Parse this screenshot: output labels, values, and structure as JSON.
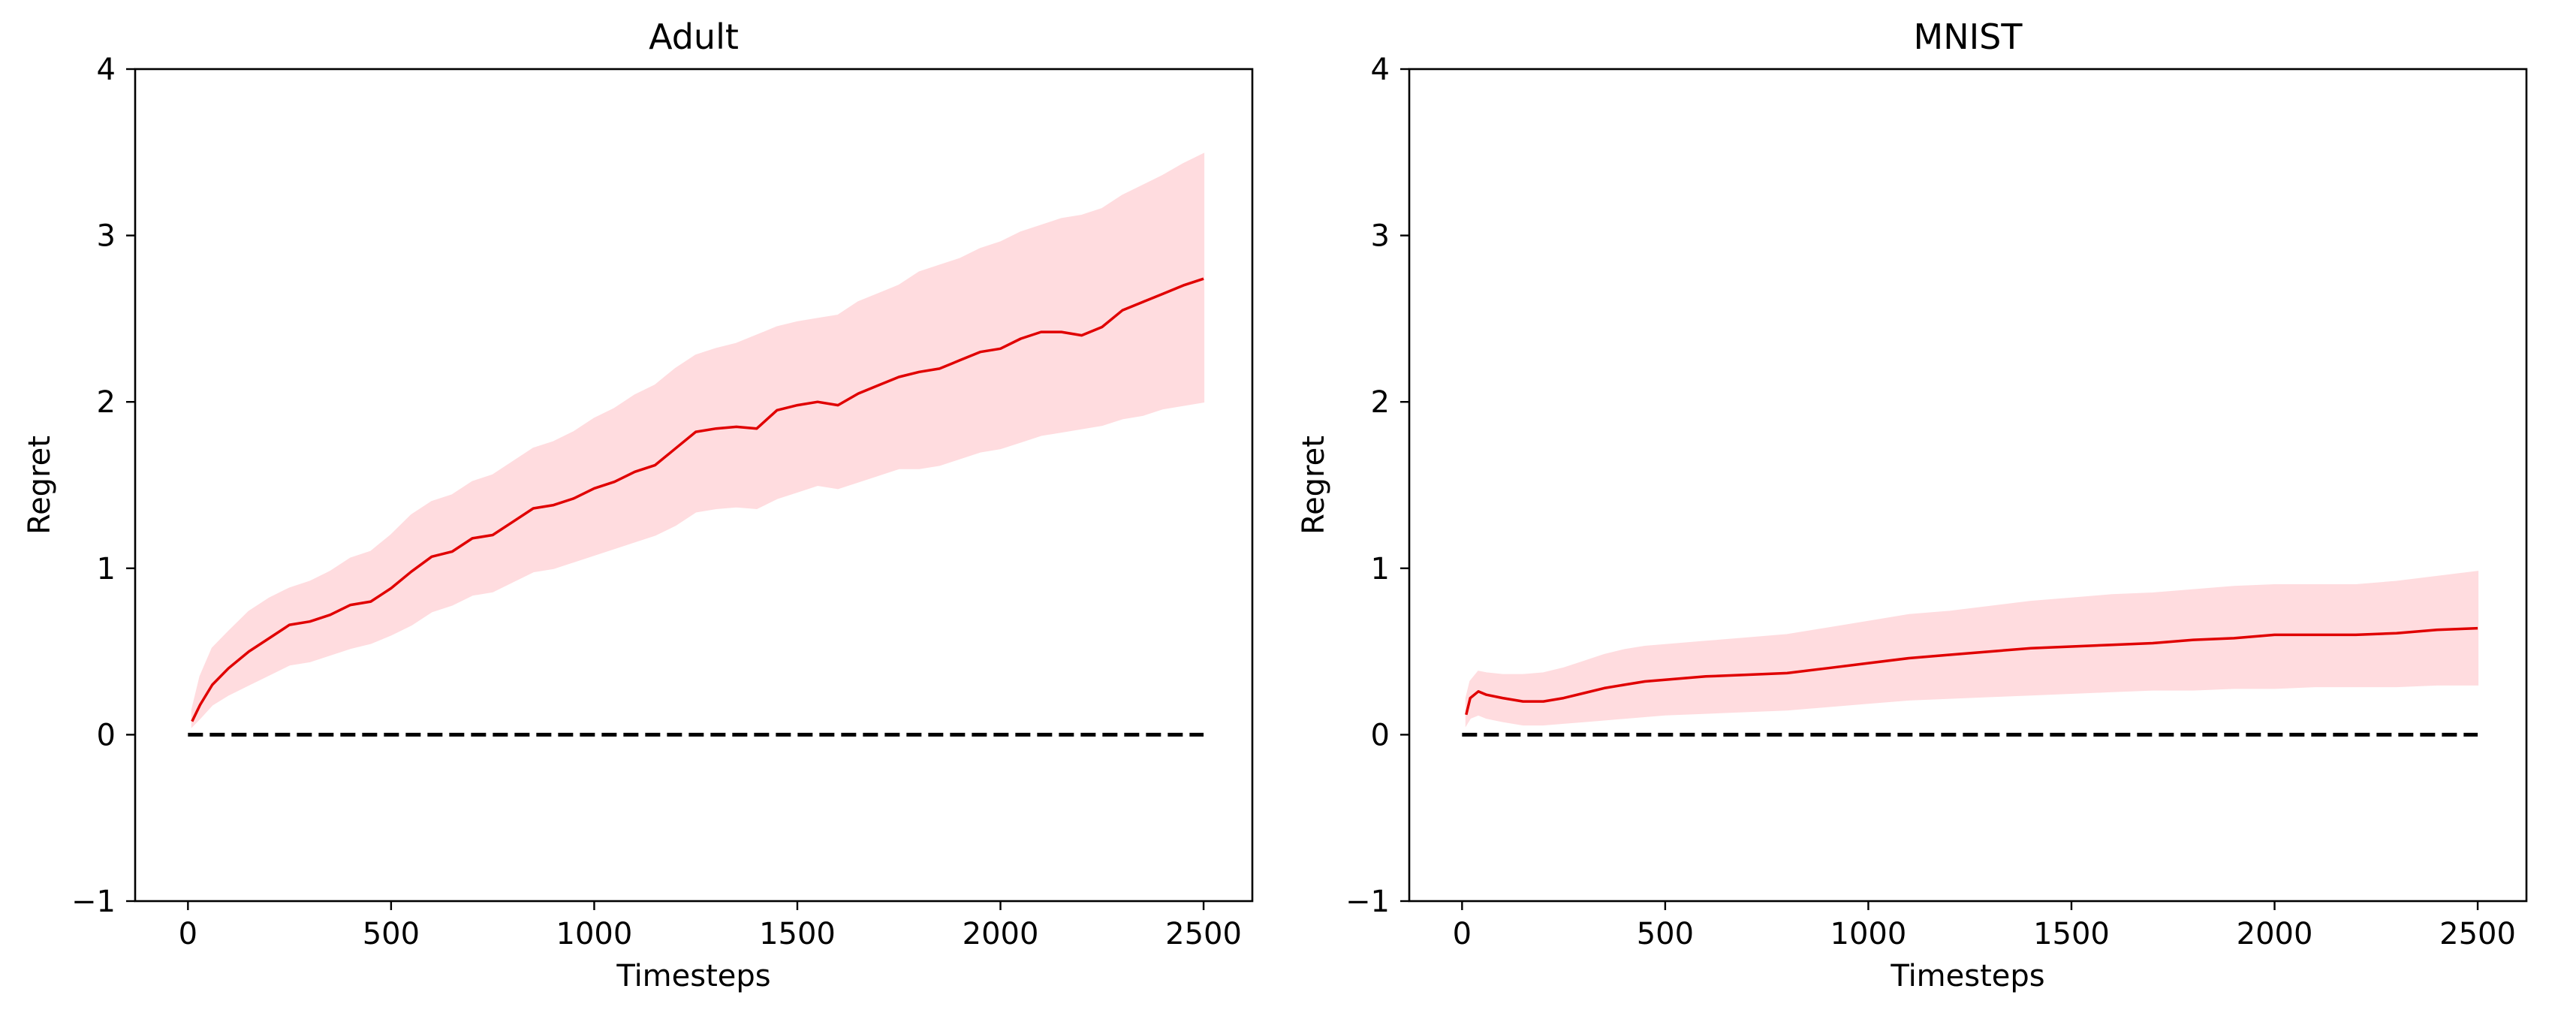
{
  "chart_data": [
    {
      "type": "line",
      "title": "Adult",
      "xlabel": "Timesteps",
      "ylabel": "Regret",
      "xlim": [
        -130,
        2620
      ],
      "ylim": [
        -1,
        4
      ],
      "xticks": [
        0,
        500,
        1000,
        1500,
        2000,
        2500
      ],
      "xtick_labels": [
        "0",
        "500",
        "1000",
        "1500",
        "2000",
        "2500"
      ],
      "yticks": [
        -1,
        0,
        1,
        2,
        3,
        4
      ],
      "ytick_labels": [
        "−1",
        "0",
        "1",
        "2",
        "3",
        "4"
      ],
      "grid": false,
      "legend": "none",
      "colors": {
        "line": "#e00000",
        "band": "#ffdcdf",
        "baseline": "#000000"
      },
      "series": [
        {
          "x": [
            10,
            30,
            60,
            100,
            150,
            200,
            250,
            300,
            350,
            400,
            450,
            500,
            550,
            600,
            650,
            700,
            750,
            800,
            850,
            900,
            950,
            1000,
            1050,
            1100,
            1150,
            1200,
            1250,
            1300,
            1350,
            1400,
            1450,
            1500,
            1550,
            1600,
            1650,
            1700,
            1750,
            1800,
            1850,
            1900,
            1950,
            2000,
            2050,
            2100,
            2150,
            2200,
            2250,
            2300,
            2350,
            2400,
            2450,
            2500
          ],
          "y": [
            0.08,
            0.18,
            0.3,
            0.4,
            0.5,
            0.58,
            0.66,
            0.68,
            0.72,
            0.78,
            0.8,
            0.88,
            0.98,
            1.07,
            1.1,
            1.18,
            1.2,
            1.28,
            1.36,
            1.38,
            1.42,
            1.48,
            1.52,
            1.58,
            1.62,
            1.72,
            1.82,
            1.84,
            1.85,
            1.84,
            1.95,
            1.98,
            2.0,
            1.98,
            2.05,
            2.1,
            2.15,
            2.18,
            2.2,
            2.25,
            2.3,
            2.32,
            2.38,
            2.42,
            2.42,
            2.4,
            2.45,
            2.55,
            2.6,
            2.65,
            2.7,
            2.74
          ],
          "upper": [
            0.15,
            0.35,
            0.52,
            0.62,
            0.74,
            0.82,
            0.88,
            0.92,
            0.98,
            1.06,
            1.1,
            1.2,
            1.32,
            1.4,
            1.44,
            1.52,
            1.56,
            1.64,
            1.72,
            1.76,
            1.82,
            1.9,
            1.96,
            2.04,
            2.1,
            2.2,
            2.28,
            2.32,
            2.35,
            2.4,
            2.45,
            2.48,
            2.5,
            2.52,
            2.6,
            2.65,
            2.7,
            2.78,
            2.82,
            2.86,
            2.92,
            2.96,
            3.02,
            3.06,
            3.1,
            3.12,
            3.16,
            3.24,
            3.3,
            3.36,
            3.43,
            3.49
          ],
          "lower": [
            0.05,
            0.1,
            0.18,
            0.24,
            0.3,
            0.36,
            0.42,
            0.44,
            0.48,
            0.52,
            0.55,
            0.6,
            0.66,
            0.74,
            0.78,
            0.84,
            0.86,
            0.92,
            0.98,
            1.0,
            1.04,
            1.08,
            1.12,
            1.16,
            1.2,
            1.26,
            1.34,
            1.36,
            1.37,
            1.36,
            1.42,
            1.46,
            1.5,
            1.48,
            1.52,
            1.56,
            1.6,
            1.6,
            1.62,
            1.66,
            1.7,
            1.72,
            1.76,
            1.8,
            1.82,
            1.84,
            1.86,
            1.9,
            1.92,
            1.96,
            1.98,
            2.0
          ]
        }
      ],
      "baseline": {
        "y": 0,
        "x_from": 0,
        "x_to": 2500,
        "style": "dashed"
      }
    },
    {
      "type": "line",
      "title": "MNIST",
      "xlabel": "Timesteps",
      "ylabel": "Regret",
      "xlim": [
        -130,
        2620
      ],
      "ylim": [
        -1,
        4
      ],
      "xticks": [
        0,
        500,
        1000,
        1500,
        2000,
        2500
      ],
      "xtick_labels": [
        "0",
        "500",
        "1000",
        "1500",
        "2000",
        "2500"
      ],
      "yticks": [
        -1,
        0,
        1,
        2,
        3,
        4
      ],
      "ytick_labels": [
        "−1",
        "0",
        "1",
        "2",
        "3",
        "4"
      ],
      "grid": false,
      "legend": "none",
      "colors": {
        "line": "#e00000",
        "band": "#ffdcdf",
        "baseline": "#000000"
      },
      "series": [
        {
          "x": [
            10,
            20,
            40,
            60,
            100,
            150,
            200,
            250,
            300,
            350,
            400,
            450,
            500,
            600,
            700,
            800,
            900,
            1000,
            1100,
            1200,
            1300,
            1400,
            1500,
            1600,
            1700,
            1800,
            1900,
            2000,
            2100,
            2200,
            2300,
            2400,
            2500
          ],
          "y": [
            0.12,
            0.22,
            0.26,
            0.24,
            0.22,
            0.2,
            0.2,
            0.22,
            0.25,
            0.28,
            0.3,
            0.32,
            0.33,
            0.35,
            0.36,
            0.37,
            0.4,
            0.43,
            0.46,
            0.48,
            0.5,
            0.52,
            0.53,
            0.54,
            0.55,
            0.57,
            0.58,
            0.6,
            0.6,
            0.6,
            0.61,
            0.63,
            0.64
          ],
          "upper": [
            0.22,
            0.32,
            0.38,
            0.37,
            0.36,
            0.36,
            0.37,
            0.4,
            0.44,
            0.48,
            0.51,
            0.53,
            0.54,
            0.56,
            0.58,
            0.6,
            0.64,
            0.68,
            0.72,
            0.74,
            0.77,
            0.8,
            0.82,
            0.84,
            0.85,
            0.87,
            0.89,
            0.9,
            0.9,
            0.9,
            0.92,
            0.95,
            0.98
          ],
          "lower": [
            0.06,
            0.1,
            0.12,
            0.1,
            0.08,
            0.06,
            0.06,
            0.07,
            0.08,
            0.09,
            0.1,
            0.11,
            0.12,
            0.13,
            0.14,
            0.15,
            0.17,
            0.19,
            0.21,
            0.22,
            0.23,
            0.24,
            0.25,
            0.26,
            0.27,
            0.27,
            0.28,
            0.28,
            0.29,
            0.29,
            0.29,
            0.3,
            0.3
          ]
        }
      ],
      "baseline": {
        "y": 0,
        "x_from": 0,
        "x_to": 2500,
        "style": "dashed"
      }
    }
  ]
}
